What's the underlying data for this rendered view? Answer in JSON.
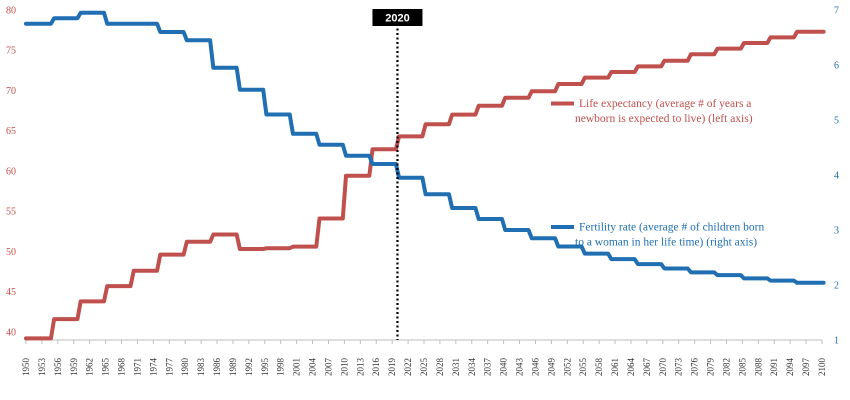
{
  "chart_data": {
    "type": "line",
    "x_range": [
      1950,
      2100
    ],
    "x_tick_labels": [
      "1950",
      "1953",
      "1956",
      "1959",
      "1962",
      "1965",
      "1968",
      "1971",
      "1974",
      "1977",
      "1980",
      "1983",
      "1986",
      "1989",
      "1992",
      "1995",
      "1998",
      "2001",
      "2004",
      "2007",
      "2010",
      "2013",
      "2016",
      "2019",
      "2022",
      "2025",
      "2028",
      "2031",
      "2034",
      "2037",
      "2040",
      "2043",
      "2046",
      "2049",
      "2052",
      "2055",
      "2058",
      "2061",
      "2064",
      "2067",
      "2070",
      "2073",
      "2076",
      "2079",
      "2082",
      "2085",
      "2088",
      "2091",
      "2094",
      "2097",
      "2100"
    ],
    "left_axis": {
      "ylim": [
        39,
        80
      ],
      "ticks": [
        40,
        45,
        50,
        55,
        60,
        65,
        70,
        75,
        80
      ]
    },
    "right_axis": {
      "ylim": [
        1,
        7
      ],
      "ticks": [
        1,
        2,
        3,
        4,
        5,
        6,
        7
      ]
    },
    "grid": false,
    "marker": {
      "x": 2020,
      "label": "2020"
    },
    "colors": {
      "life": "#C0504D",
      "fertility": "#1F6FB2",
      "marker_box": "#000000"
    },
    "series": [
      {
        "name": "Life expectancy (average # of years a newborn is expected to live) (left axis)",
        "legend_lines": [
          "Life expectancy (average # of years a",
          "newborn is expected to live) (left axis)"
        ],
        "axis": "left",
        "x": [
          1950,
          1955,
          1960,
          1965,
          1970,
          1975,
          1980,
          1985,
          1990,
          1995,
          2000,
          2005,
          2010,
          2015,
          2020,
          2025,
          2030,
          2035,
          2040,
          2045,
          2050,
          2055,
          2060,
          2065,
          2070,
          2075,
          2080,
          2085,
          2090,
          2095,
          2100
        ],
        "values": [
          39.2,
          41.6,
          43.8,
          45.7,
          47.6,
          49.6,
          51.2,
          52.1,
          50.3,
          50.4,
          50.6,
          54.1,
          59.4,
          62.7,
          64.3,
          65.8,
          67.0,
          68.1,
          69.1,
          69.9,
          70.8,
          71.6,
          72.3,
          73.0,
          73.7,
          74.5,
          75.2,
          75.9,
          76.6,
          77.3,
          77.3
        ]
      },
      {
        "name": "Fertility rate (average # of children born to a woman in her life time) (right axis)",
        "legend_lines": [
          "Fertility rate (average # of children born",
          "to a woman in her life time) (right axis)"
        ],
        "axis": "right",
        "x": [
          1950,
          1955,
          1960,
          1965,
          1970,
          1975,
          1980,
          1985,
          1990,
          1995,
          2000,
          2005,
          2010,
          2015,
          2020,
          2025,
          2030,
          2035,
          2040,
          2045,
          2050,
          2055,
          2060,
          2065,
          2070,
          2075,
          2080,
          2085,
          2090,
          2095,
          2100
        ],
        "values": [
          6.75,
          6.85,
          6.95,
          6.75,
          6.75,
          6.6,
          6.45,
          5.95,
          5.55,
          5.1,
          4.75,
          4.55,
          4.35,
          4.2,
          3.95,
          3.65,
          3.4,
          3.2,
          3.0,
          2.85,
          2.7,
          2.57,
          2.47,
          2.38,
          2.3,
          2.23,
          2.18,
          2.12,
          2.08,
          2.04,
          2.04
        ]
      }
    ]
  }
}
